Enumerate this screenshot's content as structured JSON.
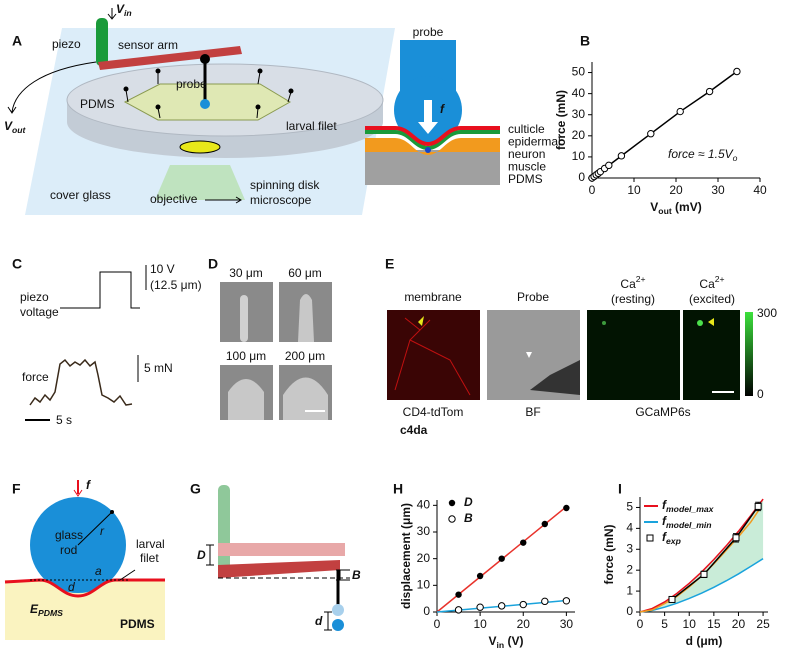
{
  "labels": [
    "A",
    "B",
    "C",
    "D",
    "E",
    "F",
    "G",
    "H",
    "I"
  ],
  "A": {
    "v_in": {
      "main": "V",
      "sub": "in"
    },
    "piezo": "piezo",
    "sensor_arm": "sensor arm",
    "probe": "probe",
    "pdms": "PDMS",
    "larval_filet": "larval filet",
    "v_out": {
      "main": "V",
      "sub": "out"
    },
    "cover_glass": "cover glass",
    "objective": "objective",
    "microscope": [
      "spinning disk",
      "microscope"
    ],
    "probe2": "probe",
    "f": "f",
    "layers": [
      {
        "text": "culticle",
        "color": "#e8101e"
      },
      {
        "text": "epidermal",
        "color": "#1a9a3a"
      },
      {
        "text": "neuron",
        "color": "#1446c8"
      },
      {
        "text": "muscle",
        "color": "#f29a1e"
      },
      {
        "text": "PDMS",
        "color": "#a0a0a0"
      }
    ]
  },
  "C": {
    "piezo_voltage": [
      "piezo",
      "voltage"
    ],
    "scale_v": [
      "10 V",
      "(12.5 μm)"
    ],
    "force": "force",
    "scale_f": "5 mN",
    "scale_t": "5 s"
  },
  "D": {
    "sizes": [
      "30 μm",
      "60 μm",
      "100 μm",
      "200 μm"
    ]
  },
  "E": {
    "membrane": "membrane",
    "probe": "Probe",
    "ca_resting": [
      {
        "main": "Ca",
        "sup": "2+"
      },
      "(resting)"
    ],
    "ca_excited": [
      {
        "main": "Ca",
        "sup": "2+"
      },
      "(excited)"
    ],
    "cbar_max": 300,
    "cbar_min": 0,
    "cd4": "CD4-tdTom",
    "bf": "BF",
    "c4da": "c4da",
    "gcamp": "GCaMP6s"
  },
  "F": {
    "f": "f",
    "glass_rod": [
      "glass",
      "rod"
    ],
    "r": "r",
    "a": "a",
    "d": "d",
    "larval_filet": [
      "larval",
      "filet"
    ],
    "e_pdms": {
      "main": "E",
      "sub": "PDMS"
    },
    "pdms": "PDMS"
  },
  "G": {
    "D": "D",
    "B": "B",
    "d": "d"
  },
  "chart_data": [
    {
      "type": "line",
      "xlabel": {
        "main": "V",
        "sub": "out",
        "rest": " (mV)"
      },
      "ylabel": "force (mN)",
      "annotation": {
        "main": "force ≈ 1.5V",
        "sub": "o"
      },
      "xlim": [
        0,
        40
      ],
      "ylim": [
        0,
        55
      ],
      "xticks": [
        0,
        10,
        20,
        30,
        40
      ],
      "yticks": [
        0,
        10,
        20,
        30,
        40,
        50
      ],
      "series": [
        {
          "color": "#000000",
          "marker": "open-circle",
          "x": [
            0,
            0.5,
            1,
            1.5,
            2,
            3,
            4,
            7,
            14,
            21,
            28,
            34.5
          ],
          "values": [
            0,
            0.7,
            1.5,
            2.2,
            3,
            4.5,
            6,
            10.5,
            21,
            31.5,
            41,
            50.5
          ]
        }
      ]
    },
    {
      "type": "scatter",
      "xlabel": {
        "main": "V",
        "sub": "in",
        "rest": " (V)"
      },
      "ylabel": "displacement (μm)",
      "xlim": [
        0,
        32
      ],
      "ylim": [
        0,
        42
      ],
      "xticks": [
        0,
        10,
        20,
        30
      ],
      "yticks": [
        0,
        10,
        20,
        30,
        40
      ],
      "series": [
        {
          "color": "#e8322b",
          "marker": "none",
          "x": [
            0,
            30
          ],
          "values": [
            0,
            39.5
          ]
        },
        {
          "color": "#1aa3dc",
          "marker": "none",
          "x": [
            0,
            30
          ],
          "values": [
            0,
            4.3
          ]
        },
        {
          "name": "D",
          "color": "#000000",
          "marker": "filled-circle",
          "x": [
            5,
            10,
            15,
            20,
            25,
            30
          ],
          "values": [
            6.5,
            13.5,
            20,
            26,
            33,
            39
          ]
        },
        {
          "name": "B",
          "color": "#000000",
          "marker": "open-circle",
          "x": [
            5,
            10,
            15,
            20,
            25,
            30
          ],
          "values": [
            0.8,
            1.8,
            2.3,
            2.8,
            4,
            4.2
          ]
        }
      ]
    },
    {
      "type": "line",
      "xlabel": {
        "main": "d",
        "rest": " (μm)"
      },
      "ylabel": "force (mN)",
      "xlim": [
        0,
        26
      ],
      "ylim": [
        0,
        5.5
      ],
      "xticks": [
        0,
        5,
        10,
        15,
        20,
        25
      ],
      "yticks": [
        0,
        1,
        2,
        3,
        4,
        5
      ],
      "band_color": "#c9ecd8",
      "series": [
        {
          "name": {
            "main": "f",
            "sub": "model_max"
          },
          "color": "#e8101e",
          "marker": "none",
          "x": [
            0,
            2.5,
            5,
            7.5,
            10,
            12.5,
            15,
            17.5,
            20,
            22.5,
            25
          ],
          "values": [
            0,
            0.17,
            0.48,
            0.89,
            1.37,
            1.91,
            2.51,
            3.16,
            3.86,
            4.61,
            5.4
          ]
        },
        {
          "name": {
            "main": "f",
            "sub": "model_min"
          },
          "color": "#1aa3dc",
          "marker": "none",
          "x": [
            0,
            2.5,
            5,
            7.5,
            10,
            12.5,
            15,
            17.5,
            20,
            22.5,
            25
          ],
          "values": [
            0,
            0.08,
            0.23,
            0.42,
            0.65,
            0.9,
            1.18,
            1.49,
            1.82,
            2.18,
            2.55
          ]
        },
        {
          "color": "#f29a1e",
          "marker": "none",
          "x": [
            0,
            2.5,
            5,
            7.5,
            10,
            12.5,
            15,
            17.5,
            20,
            22.5,
            24.5
          ],
          "values": [
            0,
            0.1,
            0.4,
            0.75,
            1.2,
            1.72,
            2.3,
            2.95,
            3.6,
            4.3,
            5.0
          ]
        },
        {
          "name": {
            "main": "f",
            "sub": "exp"
          },
          "color": "#000000",
          "marker": "open-square",
          "x": [
            6.5,
            13,
            19.5,
            24
          ],
          "values": [
            0.6,
            1.8,
            3.55,
            5.05
          ],
          "errors": [
            0.1,
            0.15,
            0.2,
            0.2
          ]
        }
      ]
    }
  ]
}
